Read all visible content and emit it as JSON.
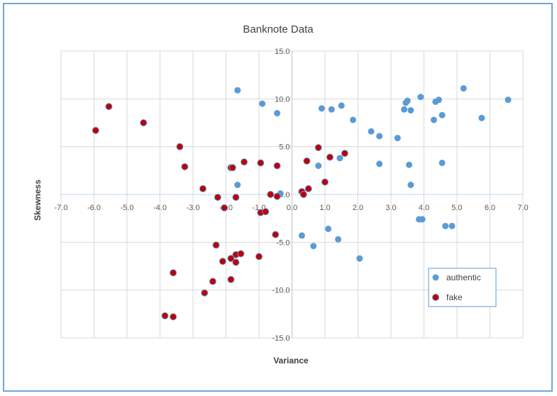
{
  "chart_data": {
    "type": "scatter",
    "title": "Banknote Data",
    "xlabel": "Variance",
    "ylabel": "Skewness",
    "xlim": [
      -7.0,
      7.0
    ],
    "ylim": [
      -15.0,
      15.0
    ],
    "x_ticks": [
      "-7.0",
      "-6.0",
      "-5.0",
      "-4.0",
      "-3.0",
      "-2.0",
      "-1.0",
      "0.0",
      "1.0",
      "2.0",
      "3.0",
      "4.0",
      "5.0",
      "6.0",
      "7.0"
    ],
    "y_ticks": [
      "15.0",
      "10.0",
      "5.0",
      "0.0",
      "-5.0",
      "-10.0",
      "-15.0"
    ],
    "x_tick_values": [
      -7,
      -6,
      -5,
      -4,
      -3,
      -2,
      -1,
      0,
      1,
      2,
      3,
      4,
      5,
      6,
      7
    ],
    "y_tick_values": [
      15,
      10,
      5,
      0,
      -5,
      -10,
      -15
    ],
    "grid": true,
    "legend_position": "bottom-right",
    "series": [
      {
        "name": "authentic",
        "color": "#5b9bd5",
        "points": [
          [
            -1.65,
            10.9
          ],
          [
            -0.9,
            9.5
          ],
          [
            -0.45,
            8.5
          ],
          [
            0.9,
            9.0
          ],
          [
            1.2,
            8.9
          ],
          [
            1.5,
            9.3
          ],
          [
            1.85,
            7.8
          ],
          [
            2.4,
            6.6
          ],
          [
            2.65,
            6.1
          ],
          [
            3.2,
            5.9
          ],
          [
            3.4,
            8.9
          ],
          [
            3.45,
            9.6
          ],
          [
            3.5,
            9.8
          ],
          [
            3.6,
            8.8
          ],
          [
            3.9,
            10.2
          ],
          [
            4.3,
            7.8
          ],
          [
            4.35,
            9.7
          ],
          [
            4.45,
            9.9
          ],
          [
            4.55,
            8.3
          ],
          [
            5.2,
            11.1
          ],
          [
            5.75,
            8.0
          ],
          [
            6.55,
            9.9
          ],
          [
            0.8,
            3.0
          ],
          [
            1.45,
            3.8
          ],
          [
            2.65,
            3.2
          ],
          [
            3.55,
            3.1
          ],
          [
            3.6,
            1.0
          ],
          [
            4.55,
            3.3
          ],
          [
            -1.65,
            1.0
          ],
          [
            -0.35,
            0.1
          ],
          [
            0.3,
            -4.3
          ],
          [
            0.65,
            -5.4
          ],
          [
            1.1,
            -3.6
          ],
          [
            1.4,
            -4.7
          ],
          [
            2.05,
            -6.7
          ],
          [
            3.85,
            -2.6
          ],
          [
            3.95,
            -2.6
          ],
          [
            4.65,
            -3.3
          ],
          [
            4.85,
            -3.3
          ]
        ]
      },
      {
        "name": "fake",
        "color": "#c00000",
        "points": [
          [
            -5.95,
            6.7
          ],
          [
            -5.55,
            9.2
          ],
          [
            -4.5,
            7.5
          ],
          [
            -3.4,
            5.0
          ],
          [
            -3.25,
            2.9
          ],
          [
            -2.7,
            0.6
          ],
          [
            -2.25,
            -0.3
          ],
          [
            -2.05,
            -1.4
          ],
          [
            -1.85,
            2.8
          ],
          [
            -1.8,
            2.8
          ],
          [
            -1.7,
            -0.3
          ],
          [
            -1.45,
            3.4
          ],
          [
            -0.95,
            3.3
          ],
          [
            -0.65,
            0.0
          ],
          [
            -0.45,
            3.0
          ],
          [
            -0.45,
            -0.2
          ],
          [
            0.3,
            0.3
          ],
          [
            0.35,
            0.0
          ],
          [
            0.45,
            3.5
          ],
          [
            0.5,
            0.6
          ],
          [
            0.8,
            4.9
          ],
          [
            1.0,
            1.3
          ],
          [
            1.15,
            3.9
          ],
          [
            1.6,
            4.3
          ],
          [
            -0.5,
            -4.2
          ],
          [
            -0.95,
            -1.9
          ],
          [
            -0.8,
            -1.8
          ],
          [
            -2.3,
            -5.3
          ],
          [
            -2.1,
            -7.0
          ],
          [
            -1.85,
            -6.7
          ],
          [
            -1.7,
            -6.3
          ],
          [
            -1.7,
            -7.1
          ],
          [
            -1.55,
            -6.2
          ],
          [
            -1.0,
            -6.5
          ],
          [
            -2.4,
            -9.1
          ],
          [
            -1.85,
            -8.9
          ],
          [
            -2.65,
            -10.3
          ],
          [
            -3.6,
            -8.2
          ],
          [
            -3.85,
            -12.7
          ],
          [
            -3.6,
            -12.8
          ]
        ]
      }
    ]
  }
}
